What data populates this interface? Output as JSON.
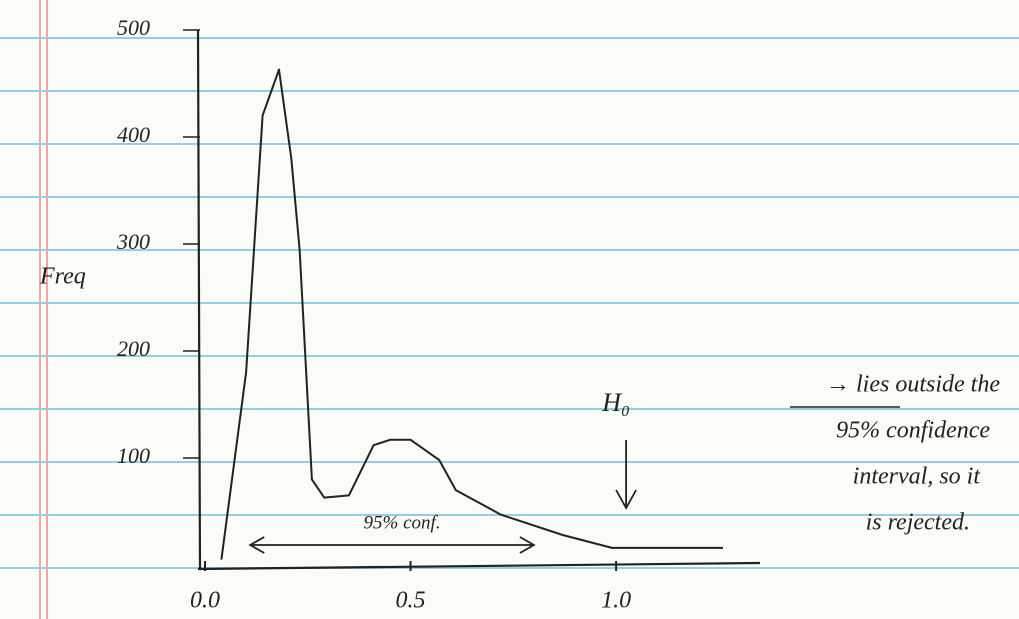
{
  "chart_data": {
    "type": "line",
    "y_label": "Freq",
    "x": [
      0.04,
      0.1,
      0.14,
      0.18,
      0.21,
      0.23,
      0.26,
      0.29,
      0.35,
      0.41,
      0.45,
      0.5,
      0.57,
      0.61,
      0.72,
      0.87,
      0.99,
      1.26
    ],
    "values": [
      5,
      180,
      420,
      463,
      380,
      295,
      80,
      63,
      65,
      112,
      117,
      117,
      98,
      70,
      47,
      28,
      16,
      16
    ],
    "color": "#222222",
    "xlim": [
      0,
      1.35
    ],
    "ylim": [
      0,
      500
    ],
    "xticks": [
      {
        "value": 0,
        "label": "0.0"
      },
      0.5,
      {
        "value": 1,
        "label": "1.0"
      }
    ],
    "yticks": [
      100,
      200,
      300,
      400,
      500
    ],
    "grid": false,
    "conf_label": "95% conf.",
    "conf_interval": [
      0.11,
      0.8
    ],
    "h0_label": "H₀",
    "h0_x": 1,
    "note_lines": [
      "→ lies outside the",
      "95% confidence",
      "interval, so it",
      "is rejected."
    ]
  }
}
